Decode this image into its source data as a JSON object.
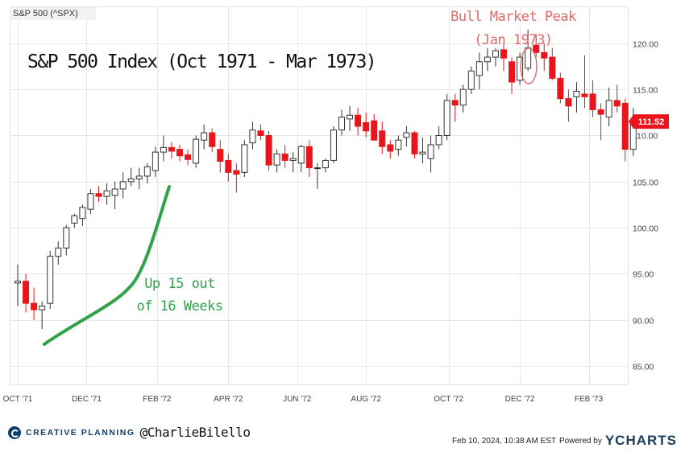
{
  "header": {
    "ticker_label": "S&P 500 (^SPX)"
  },
  "annotations": {
    "title": "S&P 500 Index  (Oct 1971 - Mar 1973)",
    "peak_line1": "Bull Market Peak",
    "peak_line2": "(Jan 1973)",
    "up_line1": "Up 15 out",
    "up_line2": "of 16 Weeks"
  },
  "footer": {
    "brand": "CREATIVE PLANNING",
    "handle": "@CharlieBilello",
    "timestamp": "Feb 10, 2024, 10:38 AM EST",
    "powered_by": "Powered by",
    "ycharts": "YCHARTS"
  },
  "colors": {
    "up_candle": "#ffffff",
    "down_candle": "#e8161c",
    "candle_outline": "#333333",
    "last_price_tag": "#e8161c",
    "annotation_green": "#2ea34a",
    "annotation_red": "#e06a66",
    "grid": "#e6e6e6"
  },
  "chart_data": {
    "type": "candlestick",
    "title": "S&P 500 Index  (Oct 1971 - Mar 1973)",
    "frequency": "weekly",
    "ylim": [
      83,
      124
    ],
    "y_ticks": [
      85,
      90,
      95,
      100,
      105,
      110,
      115,
      120
    ],
    "y_tick_labels": [
      "85.00",
      "90.00",
      "95.00",
      "100.00",
      "105.00",
      "110.00",
      "115.00",
      "120.00"
    ],
    "x_ticks": [
      "OCT '71",
      "DEC '71",
      "FEB '72",
      "APR '72",
      "JUN '72",
      "AUG '72",
      "OCT '72",
      "DEC '72",
      "FEB '73"
    ],
    "grid": true,
    "last_price": 111.52,
    "last_price_label": "111.52",
    "candles": [
      {
        "o": 94.0,
        "h": 96.0,
        "l": 91.5,
        "c": 94.2
      },
      {
        "o": 94.2,
        "h": 95.0,
        "l": 90.8,
        "c": 91.8
      },
      {
        "o": 91.8,
        "h": 93.5,
        "l": 90.0,
        "c": 91.1
      },
      {
        "o": 91.1,
        "h": 92.0,
        "l": 89.0,
        "c": 91.5
      },
      {
        "o": 91.8,
        "h": 97.5,
        "l": 91.2,
        "c": 96.9
      },
      {
        "o": 96.9,
        "h": 98.5,
        "l": 96.0,
        "c": 97.8
      },
      {
        "o": 97.8,
        "h": 100.3,
        "l": 97.0,
        "c": 100.0
      },
      {
        "o": 100.5,
        "h": 101.5,
        "l": 100.0,
        "c": 101.3
      },
      {
        "o": 101.0,
        "h": 102.5,
        "l": 100.2,
        "c": 102.2
      },
      {
        "o": 102.0,
        "h": 104.2,
        "l": 101.5,
        "c": 103.7
      },
      {
        "o": 103.7,
        "h": 104.5,
        "l": 102.8,
        "c": 103.4
      },
      {
        "o": 103.4,
        "h": 104.8,
        "l": 102.5,
        "c": 104.0
      },
      {
        "o": 103.5,
        "h": 105.0,
        "l": 102.0,
        "c": 104.2
      },
      {
        "o": 104.2,
        "h": 106.0,
        "l": 103.2,
        "c": 105.0
      },
      {
        "o": 105.0,
        "h": 106.5,
        "l": 104.5,
        "c": 105.3
      },
      {
        "o": 105.3,
        "h": 106.5,
        "l": 104.2,
        "c": 105.6
      },
      {
        "o": 105.6,
        "h": 107.0,
        "l": 104.8,
        "c": 106.6
      },
      {
        "o": 106.2,
        "h": 108.8,
        "l": 105.5,
        "c": 108.2
      },
      {
        "o": 108.2,
        "h": 110.0,
        "l": 107.2,
        "c": 108.7
      },
      {
        "o": 108.7,
        "h": 109.3,
        "l": 107.5,
        "c": 108.3
      },
      {
        "o": 108.5,
        "h": 109.0,
        "l": 107.2,
        "c": 107.8
      },
      {
        "o": 107.9,
        "h": 108.5,
        "l": 106.8,
        "c": 107.4
      },
      {
        "o": 107.0,
        "h": 110.0,
        "l": 106.5,
        "c": 109.6
      },
      {
        "o": 109.5,
        "h": 111.2,
        "l": 108.5,
        "c": 110.3
      },
      {
        "o": 110.3,
        "h": 110.8,
        "l": 108.2,
        "c": 108.8
      },
      {
        "o": 108.5,
        "h": 109.5,
        "l": 106.0,
        "c": 107.2
      },
      {
        "o": 107.3,
        "h": 108.0,
        "l": 105.0,
        "c": 106.0
      },
      {
        "o": 106.2,
        "h": 107.0,
        "l": 103.8,
        "c": 105.8
      },
      {
        "o": 106.0,
        "h": 109.5,
        "l": 105.5,
        "c": 109.0
      },
      {
        "o": 109.2,
        "h": 111.5,
        "l": 108.5,
        "c": 110.6
      },
      {
        "o": 110.5,
        "h": 111.2,
        "l": 109.5,
        "c": 110.0
      },
      {
        "o": 110.0,
        "h": 110.5,
        "l": 106.2,
        "c": 106.8
      },
      {
        "o": 106.8,
        "h": 108.5,
        "l": 106.0,
        "c": 108.0
      },
      {
        "o": 108.0,
        "h": 109.0,
        "l": 106.5,
        "c": 107.3
      },
      {
        "o": 107.3,
        "h": 108.2,
        "l": 106.0,
        "c": 107.5
      },
      {
        "o": 107.0,
        "h": 109.0,
        "l": 106.0,
        "c": 108.8
      },
      {
        "o": 108.8,
        "h": 109.5,
        "l": 105.5,
        "c": 106.5
      },
      {
        "o": 106.5,
        "h": 107.0,
        "l": 104.2,
        "c": 106.5
      },
      {
        "o": 106.5,
        "h": 107.5,
        "l": 106.0,
        "c": 107.3
      },
      {
        "o": 107.3,
        "h": 111.0,
        "l": 107.0,
        "c": 110.6
      },
      {
        "o": 110.6,
        "h": 112.8,
        "l": 110.0,
        "c": 112.0
      },
      {
        "o": 111.8,
        "h": 113.2,
        "l": 110.5,
        "c": 112.2
      },
      {
        "o": 112.2,
        "h": 113.0,
        "l": 110.0,
        "c": 111.0
      },
      {
        "o": 111.4,
        "h": 112.5,
        "l": 109.8,
        "c": 110.5
      },
      {
        "o": 111.6,
        "h": 112.3,
        "l": 109.8,
        "c": 109.5
      },
      {
        "o": 110.5,
        "h": 111.5,
        "l": 108.0,
        "c": 108.8
      },
      {
        "o": 109.0,
        "h": 109.5,
        "l": 107.5,
        "c": 108.3
      },
      {
        "o": 108.5,
        "h": 110.0,
        "l": 107.8,
        "c": 109.5
      },
      {
        "o": 109.8,
        "h": 111.0,
        "l": 108.8,
        "c": 110.3
      },
      {
        "o": 110.3,
        "h": 110.5,
        "l": 107.5,
        "c": 108.0
      },
      {
        "o": 108.0,
        "h": 109.8,
        "l": 107.0,
        "c": 108.2
      },
      {
        "o": 107.5,
        "h": 110.0,
        "l": 106.0,
        "c": 109.0
      },
      {
        "o": 109.0,
        "h": 111.0,
        "l": 108.5,
        "c": 110.0
      },
      {
        "o": 110.0,
        "h": 114.5,
        "l": 109.5,
        "c": 113.8
      },
      {
        "o": 113.8,
        "h": 114.5,
        "l": 111.5,
        "c": 113.3
      },
      {
        "o": 113.3,
        "h": 115.5,
        "l": 112.5,
        "c": 115.0
      },
      {
        "o": 115.0,
        "h": 117.5,
        "l": 114.5,
        "c": 117.0
      },
      {
        "o": 116.5,
        "h": 119.0,
        "l": 115.0,
        "c": 118.0
      },
      {
        "o": 118.0,
        "h": 119.5,
        "l": 117.0,
        "c": 118.5
      },
      {
        "o": 118.5,
        "h": 119.5,
        "l": 117.5,
        "c": 119.2
      },
      {
        "o": 119.3,
        "h": 120.0,
        "l": 117.0,
        "c": 118.4
      },
      {
        "o": 118.0,
        "h": 118.5,
        "l": 114.5,
        "c": 115.8
      },
      {
        "o": 116.0,
        "h": 119.0,
        "l": 115.5,
        "c": 118.5
      },
      {
        "o": 117.3,
        "h": 121.5,
        "l": 117.0,
        "c": 119.5
      },
      {
        "o": 119.8,
        "h": 121.0,
        "l": 118.5,
        "c": 119.0
      },
      {
        "o": 119.0,
        "h": 120.0,
        "l": 117.0,
        "c": 118.4
      },
      {
        "o": 118.5,
        "h": 119.5,
        "l": 116.0,
        "c": 116.2
      },
      {
        "o": 116.2,
        "h": 116.8,
        "l": 113.5,
        "c": 114.0
      },
      {
        "o": 114.0,
        "h": 115.0,
        "l": 111.5,
        "c": 113.2
      },
      {
        "o": 114.2,
        "h": 115.8,
        "l": 112.5,
        "c": 114.8
      },
      {
        "o": 114.5,
        "h": 118.7,
        "l": 113.0,
        "c": 114.2
      },
      {
        "o": 114.5,
        "h": 116.0,
        "l": 112.0,
        "c": 112.8
      },
      {
        "o": 112.8,
        "h": 113.5,
        "l": 109.5,
        "c": 112.3
      },
      {
        "o": 112.0,
        "h": 115.2,
        "l": 111.0,
        "c": 113.8
      },
      {
        "o": 113.8,
        "h": 115.5,
        "l": 112.5,
        "c": 113.2
      },
      {
        "o": 113.5,
        "h": 114.0,
        "l": 107.2,
        "c": 108.5
      },
      {
        "o": 108.5,
        "h": 113.0,
        "l": 107.8,
        "c": 111.5
      }
    ]
  }
}
